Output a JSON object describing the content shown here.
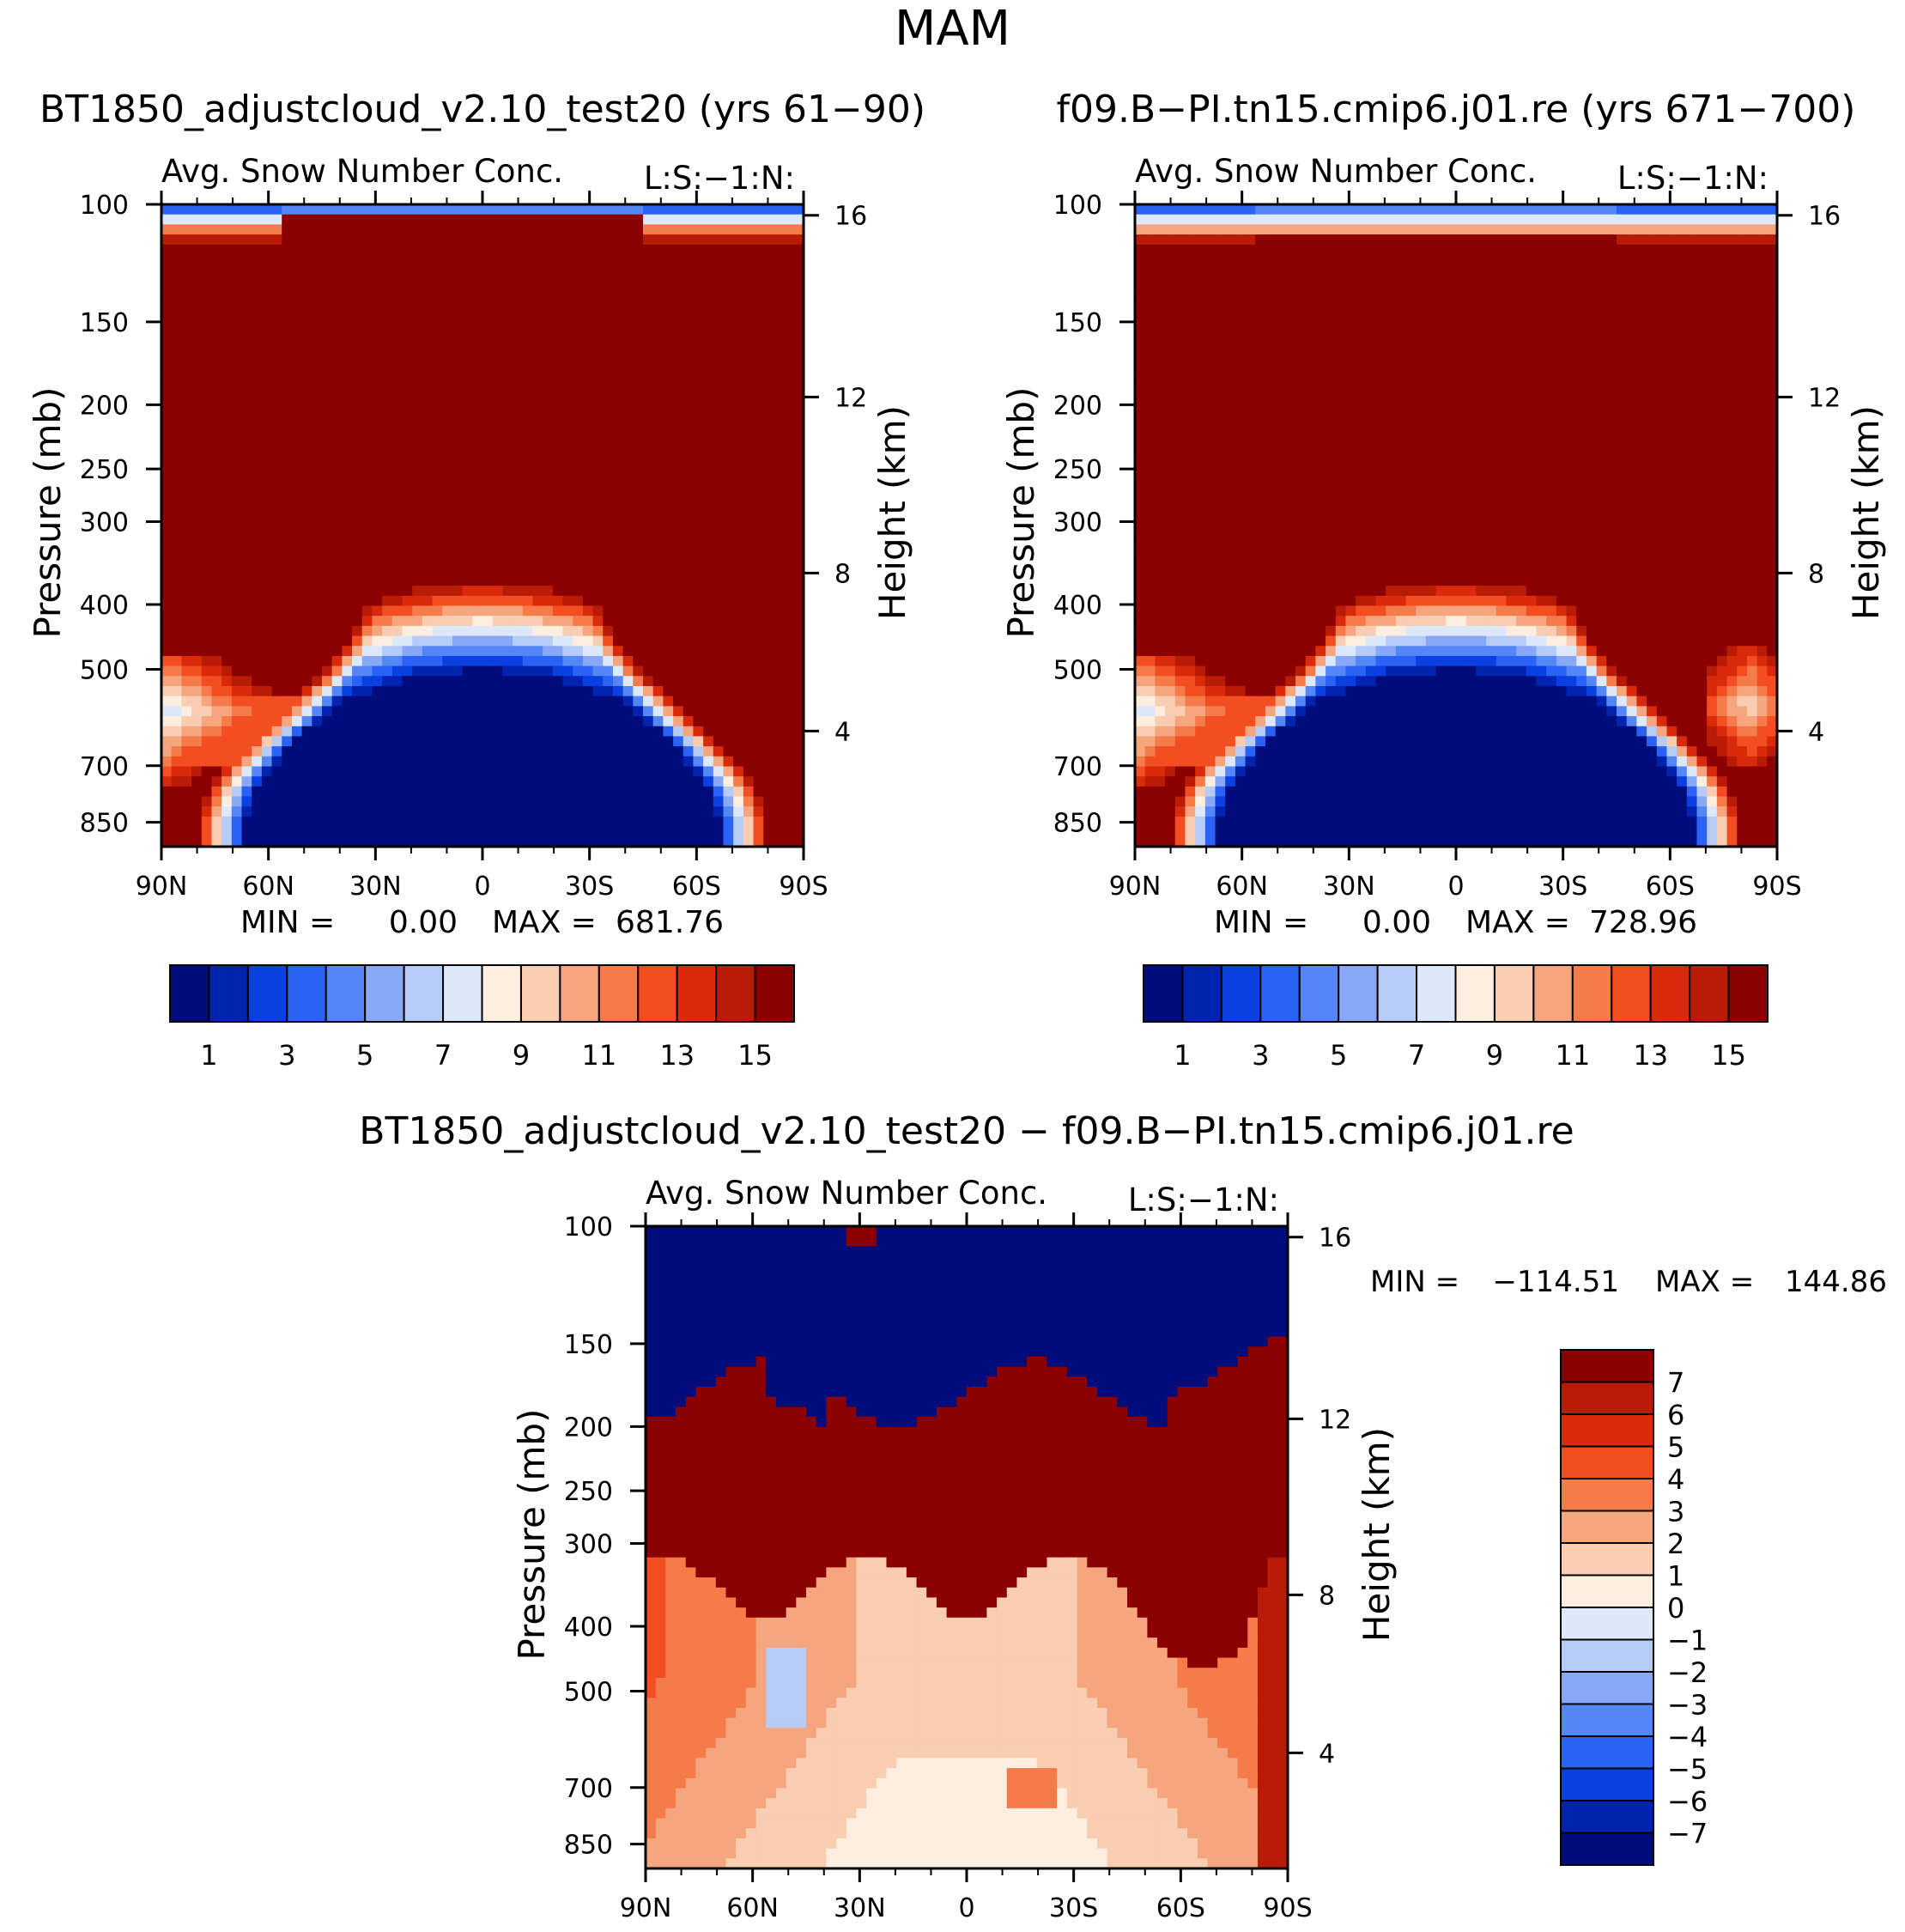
{
  "page": {
    "title": "MAM"
  },
  "chart_data": [
    {
      "id": "panel1",
      "type": "heatmap",
      "case_title": "BT1850_adjustcloud_v2.10_test20 (yrs 61−90)",
      "title": "Avg. Snow Number Conc.",
      "units_label": "L:S:−1:N:",
      "xlabel": "",
      "ylabel": "Pressure (mb)",
      "y2label": "Height (km)",
      "x_ticks": [
        "90N",
        "60N",
        "30N",
        "0",
        "30S",
        "60S",
        "90S"
      ],
      "y_ticks": [
        "100",
        "150",
        "200",
        "250",
        "300",
        "400",
        "500",
        "700",
        "850"
      ],
      "y2_ticks": [
        "16",
        "12",
        "8",
        "4"
      ],
      "ylim": [
        1000,
        100
      ],
      "min_label": "MIN =",
      "min_value": "0.00",
      "max_label": "MAX =",
      "max_value": "681.76",
      "colorbar_labels": [
        "1",
        "3",
        "5",
        "7",
        "9",
        "11",
        "13",
        "15"
      ],
      "levels": [
        1,
        2,
        3,
        4,
        5,
        6,
        7,
        8,
        9,
        10,
        11,
        12,
        13,
        14,
        15
      ]
    },
    {
      "id": "panel2",
      "type": "heatmap",
      "case_title": "f09.B−PI.tn15.cmip6.j01.re (yrs 671−700)",
      "title": "Avg. Snow Number Conc.",
      "units_label": "L:S:−1:N:",
      "xlabel": "",
      "ylabel": "Pressure (mb)",
      "y2label": "Height (km)",
      "x_ticks": [
        "90N",
        "60N",
        "30N",
        "0",
        "30S",
        "60S",
        "90S"
      ],
      "y_ticks": [
        "100",
        "150",
        "200",
        "250",
        "300",
        "400",
        "500",
        "700",
        "850"
      ],
      "y2_ticks": [
        "16",
        "12",
        "8",
        "4"
      ],
      "ylim": [
        1000,
        100
      ],
      "min_label": "MIN =",
      "min_value": "0.00",
      "max_label": "MAX =",
      "max_value": "728.96",
      "colorbar_labels": [
        "1",
        "3",
        "5",
        "7",
        "9",
        "11",
        "13",
        "15"
      ],
      "levels": [
        1,
        2,
        3,
        4,
        5,
        6,
        7,
        8,
        9,
        10,
        11,
        12,
        13,
        14,
        15
      ]
    },
    {
      "id": "panel3",
      "type": "heatmap",
      "case_title": "BT1850_adjustcloud_v2.10_test20 − f09.B−PI.tn15.cmip6.j01.re",
      "title": "Avg. Snow Number Conc.",
      "units_label": "L:S:−1:N:",
      "xlabel": "",
      "ylabel": "Pressure (mb)",
      "y2label": "Height (km)",
      "x_ticks": [
        "90N",
        "60N",
        "30N",
        "0",
        "30S",
        "60S",
        "90S"
      ],
      "y_ticks": [
        "100",
        "150",
        "200",
        "250",
        "300",
        "400",
        "500",
        "700",
        "850"
      ],
      "y2_ticks": [
        "16",
        "12",
        "8",
        "4"
      ],
      "ylim": [
        1000,
        100
      ],
      "min_label": "MIN =",
      "min_value": "−114.51",
      "max_label": "MAX =",
      "max_value": "144.86",
      "colorbar_labels": [
        "7",
        "6",
        "5",
        "4",
        "3",
        "2",
        "1",
        "0",
        "−1",
        "−2",
        "−3",
        "−4",
        "−5",
        "−6",
        "−7"
      ],
      "levels": [
        -7,
        -6,
        -5,
        -4,
        -3,
        -2,
        -1,
        0,
        1,
        2,
        3,
        4,
        5,
        6,
        7
      ]
    }
  ],
  "palette": [
    "#000c7a",
    "#0024b0",
    "#0a3fe0",
    "#2a62f5",
    "#5586f5",
    "#88a8f5",
    "#b7cbf7",
    "#dde9fb",
    "#fdeedf",
    "#f9cdb2",
    "#f6a67f",
    "#f57b4b",
    "#f24e22",
    "#d92a0b",
    "#b81c06",
    "#8b0000"
  ]
}
